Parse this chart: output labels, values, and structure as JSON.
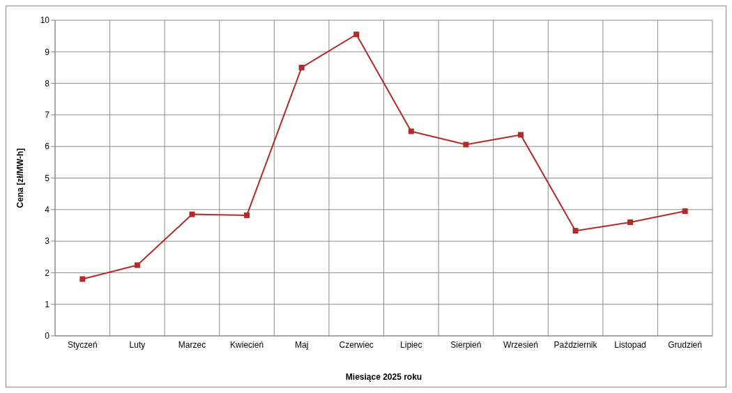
{
  "chart_data": {
    "type": "line",
    "xlabel": "Miesiące 2025  roku",
    "ylabel": "Cena [zł/MW-h]",
    "categories": [
      "Styczeń",
      "Luty",
      "Marzec",
      "Kwiecień",
      "Maj",
      "Czerwiec",
      "Lipiec",
      "Sierpień",
      "Wrzesień",
      "Październik",
      "Listopad",
      "Grudzień"
    ],
    "series": [
      {
        "color": "#b22a2a",
        "values": [
          1.8,
          2.24,
          3.85,
          3.82,
          8.5,
          9.55,
          6.48,
          6.06,
          6.37,
          3.33,
          3.6,
          3.95
        ]
      }
    ],
    "ylim": [
      0,
      10
    ],
    "yticks": [
      0,
      1,
      2,
      3,
      4,
      5,
      6,
      7,
      8,
      9,
      10
    ],
    "grid": true,
    "legend": false,
    "marker": "square",
    "line_style": "solid"
  }
}
